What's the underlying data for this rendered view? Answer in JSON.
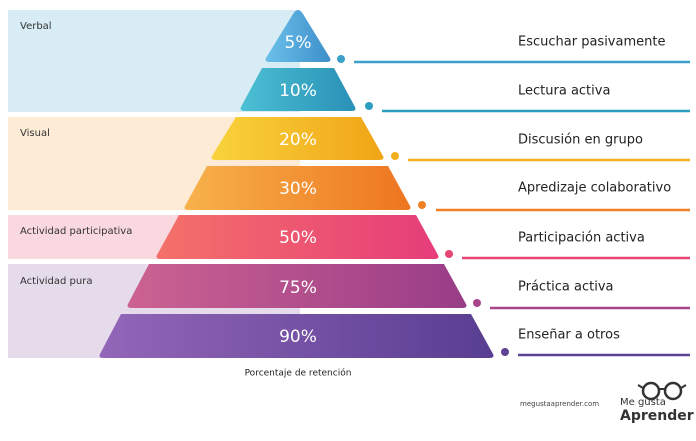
{
  "groups": [
    {
      "label": "Verbal"
    },
    {
      "label": "Visual"
    },
    {
      "label": "Actividad participativa"
    },
    {
      "label": "Actividad pura"
    }
  ],
  "levels": [
    {
      "percent": "5%",
      "label": "Escuchar pasivamente"
    },
    {
      "percent": "10%",
      "label": "Lectura activa"
    },
    {
      "percent": "20%",
      "label": "Discusión en grupo"
    },
    {
      "percent": "30%",
      "label": "Apredizaje colaborativo"
    },
    {
      "percent": "50%",
      "label": "Participación activa"
    },
    {
      "percent": "75%",
      "label": "Práctica activa"
    },
    {
      "percent": "90%",
      "label": "Enseñar a otros"
    }
  ],
  "caption": "Porcentaje de retención",
  "footer": {
    "website": "megustaaprender.com",
    "logo_top": "Me gusta",
    "logo_bottom": "Aprender"
  }
}
